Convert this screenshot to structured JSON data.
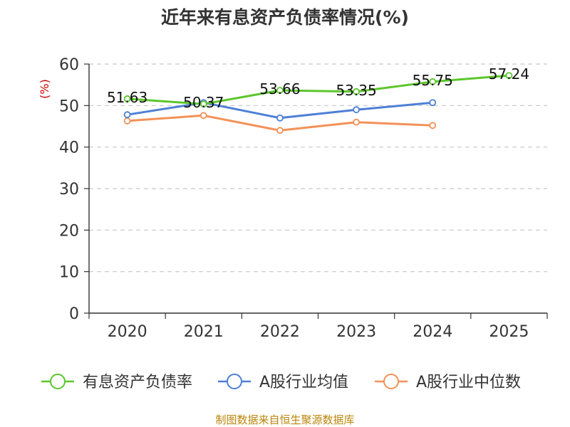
{
  "chart_data": {
    "type": "line",
    "title": "近年来有息资产负债率情况(%)",
    "ylabel": "(%)",
    "xlabel": "",
    "categories": [
      "2020",
      "2021",
      "2022",
      "2023",
      "2024",
      "2025"
    ],
    "ylim": [
      0,
      60
    ],
    "yticks": [
      "0",
      "10",
      "20",
      "30",
      "40",
      "50",
      "60"
    ],
    "grid": true,
    "legend_position": "bottom",
    "series": [
      {
        "name": "有息资产负债率",
        "color": "#5cc62c",
        "values": [
          51.63,
          50.37,
          53.66,
          53.35,
          55.75,
          57.24
        ],
        "labels": [
          "51.63",
          "50.37",
          "53.66",
          "53.35",
          "55.75",
          "57.24"
        ]
      },
      {
        "name": "A股行业均值",
        "color": "#4e7fd6",
        "values": [
          47.8,
          50.7,
          47.0,
          49.0,
          50.7,
          null
        ]
      },
      {
        "name": "A股行业中位数",
        "color": "#f39158",
        "values": [
          46.3,
          47.6,
          44.0,
          46.0,
          45.2,
          null
        ]
      }
    ],
    "source": "制图数据来自恒生聚源数据库"
  }
}
